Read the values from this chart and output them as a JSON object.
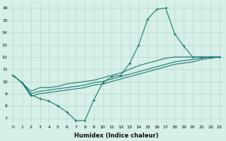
{
  "xlabel": "Humidex (Indice chaleur)",
  "bg_color": "#d6efe8",
  "grid_color": "#b8d8d0",
  "line_color": "#1a7a6e",
  "xlim": [
    -0.5,
    23.5
  ],
  "ylim": [
    6.5,
    16.5
  ],
  "xticks": [
    0,
    1,
    2,
    3,
    4,
    5,
    6,
    7,
    8,
    9,
    10,
    11,
    12,
    13,
    14,
    15,
    16,
    17,
    18,
    19,
    20,
    21,
    22,
    23
  ],
  "yticks": [
    7,
    8,
    9,
    10,
    11,
    12,
    13,
    14,
    15,
    16
  ],
  "series": [
    [
      10.5,
      9.9,
      8.9,
      8.6,
      8.4,
      8.0,
      7.5,
      6.8,
      6.8,
      8.5,
      9.9,
      10.4,
      10.5,
      11.5,
      13.0,
      15.1,
      15.9,
      16.0,
      13.9,
      12.9,
      12.0,
      12.0,
      12.0,
      12.0
    ],
    [
      10.5,
      9.9,
      9.2,
      9.5,
      9.5,
      9.6,
      9.8,
      9.9,
      10.0,
      10.1,
      10.3,
      10.5,
      10.7,
      11.0,
      11.3,
      11.5,
      11.7,
      11.9,
      12.0,
      12.0,
      12.0,
      12.0,
      12.0,
      12.0
    ],
    [
      10.5,
      9.9,
      9.0,
      9.2,
      9.3,
      9.4,
      9.5,
      9.6,
      9.7,
      9.9,
      10.0,
      10.2,
      10.4,
      10.6,
      10.8,
      11.0,
      11.2,
      11.4,
      11.6,
      11.7,
      11.8,
      11.9,
      12.0,
      12.0
    ],
    [
      10.5,
      9.9,
      8.8,
      9.0,
      9.1,
      9.2,
      9.3,
      9.4,
      9.5,
      9.7,
      9.8,
      10.0,
      10.2,
      10.4,
      10.6,
      10.8,
      11.0,
      11.2,
      11.4,
      11.5,
      11.6,
      11.8,
      11.9,
      12.0
    ]
  ],
  "marker": "+",
  "xlabel_fontsize": 6.0,
  "tick_fontsize": 4.5,
  "linewidth": 0.8,
  "markersize": 2.5
}
